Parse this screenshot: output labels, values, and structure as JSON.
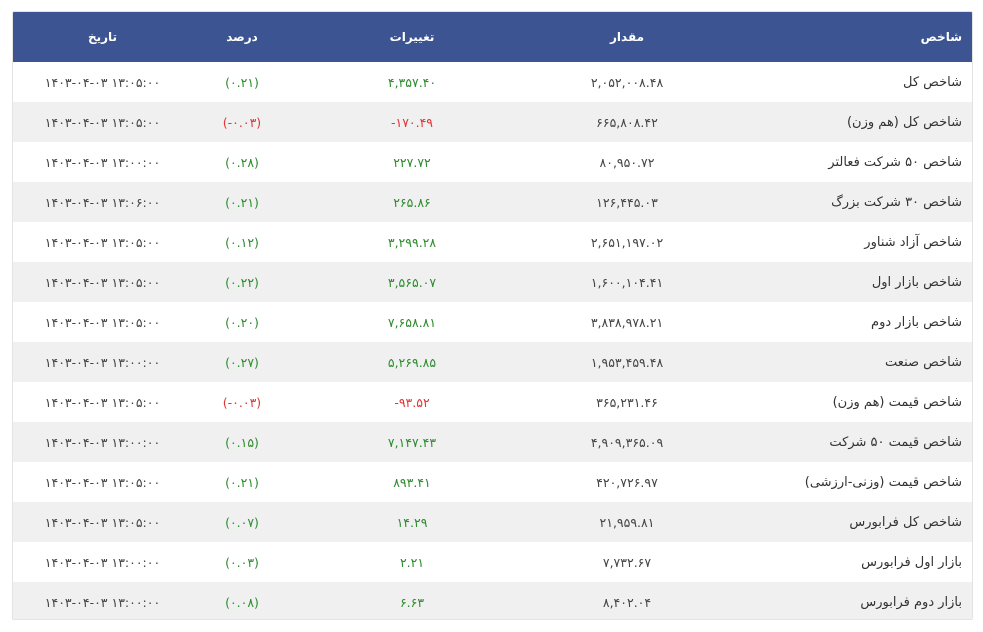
{
  "header": {
    "name": "شاخص",
    "value": "مقدار",
    "change": "تغییرات",
    "percent": "درصد",
    "date": "تاریخ"
  },
  "colors": {
    "header_bg": "#3c5592",
    "positive": "#2e8b2e",
    "negative": "#e03535"
  },
  "rows": [
    {
      "name": "شاخص کل",
      "value": "۲,۰۵۲,۰۰۸.۴۸",
      "change": "۴,۳۵۷.۴۰",
      "percent": "(۰.۲۱)",
      "date": "۱۴۰۳-۰۴-۰۳ ۱۳:۰۵:۰۰",
      "positive": true
    },
    {
      "name": "شاخص کل (هم وزن)",
      "value": "۶۶۵,۸۰۸.۴۲",
      "change": "-۱۷۰.۴۹",
      "percent": "(-۰.۰۳)",
      "date": "۱۴۰۳-۰۴-۰۳ ۱۳:۰۵:۰۰",
      "positive": false
    },
    {
      "name": "شاخص ۵۰ شرکت فعالتر",
      "value": "۸۰,۹۵۰.۷۲",
      "change": "۲۲۷.۷۲",
      "percent": "(۰.۲۸)",
      "date": "۱۴۰۳-۰۴-۰۳ ۱۳:۰۰:۰۰",
      "positive": true
    },
    {
      "name": "شاخص ۳۰ شرکت بزرگ",
      "value": "۱۲۶,۴۴۵.۰۳",
      "change": "۲۶۵.۸۶",
      "percent": "(۰.۲۱)",
      "date": "۱۴۰۳-۰۴-۰۳ ۱۳:۰۶:۰۰",
      "positive": true
    },
    {
      "name": "شاخص آزاد شناور",
      "value": "۲,۶۵۱,۱۹۷.۰۲",
      "change": "۳,۲۹۹.۲۸",
      "percent": "(۰.۱۲)",
      "date": "۱۴۰۳-۰۴-۰۳ ۱۳:۰۵:۰۰",
      "positive": true
    },
    {
      "name": "شاخص بازار اول",
      "value": "۱,۶۰۰,۱۰۴.۴۱",
      "change": "۳,۵۶۵.۰۷",
      "percent": "(۰.۲۲)",
      "date": "۱۴۰۳-۰۴-۰۳ ۱۳:۰۵:۰۰",
      "positive": true
    },
    {
      "name": "شاخص بازار دوم",
      "value": "۳,۸۳۸,۹۷۸.۲۱",
      "change": "۷,۶۵۸.۸۱",
      "percent": "(۰.۲۰)",
      "date": "۱۴۰۳-۰۴-۰۳ ۱۳:۰۵:۰۰",
      "positive": true
    },
    {
      "name": "شاخص صنعت",
      "value": "۱,۹۵۳,۴۵۹.۴۸",
      "change": "۵,۲۶۹.۸۵",
      "percent": "(۰.۲۷)",
      "date": "۱۴۰۳-۰۴-۰۳ ۱۳:۰۰:۰۰",
      "positive": true
    },
    {
      "name": "شاخص قیمت (هم وزن)",
      "value": "۳۶۵,۲۳۱.۴۶",
      "change": "-۹۳.۵۲",
      "percent": "(-۰.۰۳)",
      "date": "۱۴۰۳-۰۴-۰۳ ۱۳:۰۵:۰۰",
      "positive": false
    },
    {
      "name": "شاخص قیمت ۵۰ شرکت",
      "value": "۴,۹۰۹,۳۶۵.۰۹",
      "change": "۷,۱۴۷.۴۳",
      "percent": "(۰.۱۵)",
      "date": "۱۴۰۳-۰۴-۰۳ ۱۳:۰۰:۰۰",
      "positive": true
    },
    {
      "name": "شاخص قیمت (وزنی-ارزشی)",
      "value": "۴۲۰,۷۲۶.۹۷",
      "change": "۸۹۳.۴۱",
      "percent": "(۰.۲۱)",
      "date": "۱۴۰۳-۰۴-۰۳ ۱۳:۰۵:۰۰",
      "positive": true
    },
    {
      "name": "شاخص کل فرابورس",
      "value": "۲۱,۹۵۹.۸۱",
      "change": "۱۴.۲۹",
      "percent": "(۰.۰۷)",
      "date": "۱۴۰۳-۰۴-۰۳ ۱۳:۰۵:۰۰",
      "positive": true
    },
    {
      "name": "بازار اول فرابورس",
      "value": "۷,۷۳۲.۶۷",
      "change": "۲.۲۱",
      "percent": "(۰.۰۳)",
      "date": "۱۴۰۳-۰۴-۰۳ ۱۳:۰۰:۰۰",
      "positive": true
    },
    {
      "name": "بازار دوم فرابورس",
      "value": "۸,۴۰۲.۰۴",
      "change": "۶.۶۳",
      "percent": "(۰.۰۸)",
      "date": "۱۴۰۳-۰۴-۰۳ ۱۳:۰۰:۰۰",
      "positive": true
    }
  ]
}
